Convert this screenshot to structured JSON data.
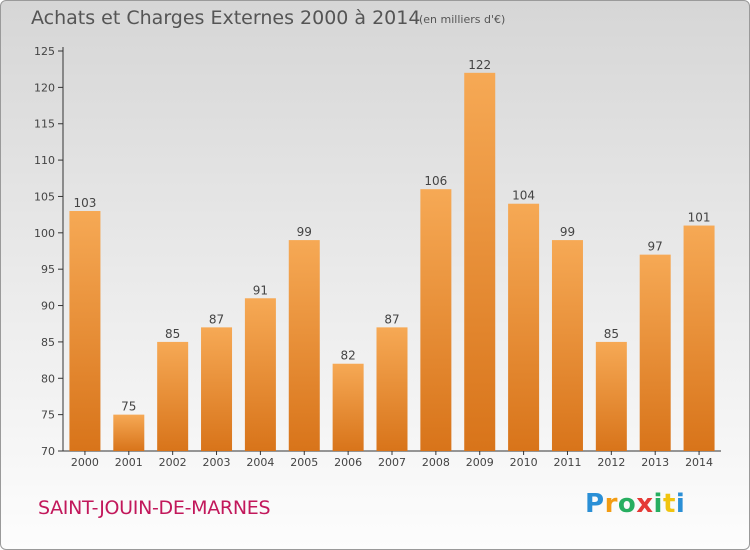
{
  "header": {
    "title": "Achats et Charges Externes 2000 à 2014",
    "unit": "(en milliers d'€)"
  },
  "footer": {
    "commune": "SAINT-JOUIN-DE-MARNES",
    "logo_letters": [
      "P",
      "r",
      "o",
      "x",
      "i",
      "t",
      "i"
    ],
    "logo_colors": [
      "#2a8fd6",
      "#f39c12",
      "#27ae60",
      "#e53935",
      "#27ae60",
      "#f1c40f",
      "#2a8fd6"
    ]
  },
  "colors": {
    "bar_top": "#f6a955",
    "bar_bottom": "#d8741a",
    "axis": "#333333"
  },
  "chart_data": {
    "type": "bar",
    "title": "Achats et Charges Externes 2000 à 2014",
    "subtitle": "(en milliers d'€)",
    "xlabel": "",
    "ylabel": "",
    "categories": [
      "2000",
      "2001",
      "2002",
      "2003",
      "2004",
      "2005",
      "2006",
      "2007",
      "2008",
      "2009",
      "2010",
      "2011",
      "2012",
      "2013",
      "2014"
    ],
    "values": [
      103,
      75,
      85,
      87,
      91,
      99,
      82,
      87,
      106,
      122,
      104,
      99,
      85,
      97,
      101
    ],
    "ylim": [
      70,
      125
    ],
    "yticks": [
      70,
      75,
      80,
      85,
      90,
      95,
      100,
      105,
      110,
      115,
      120,
      125
    ],
    "grid": false,
    "legend": "none"
  }
}
